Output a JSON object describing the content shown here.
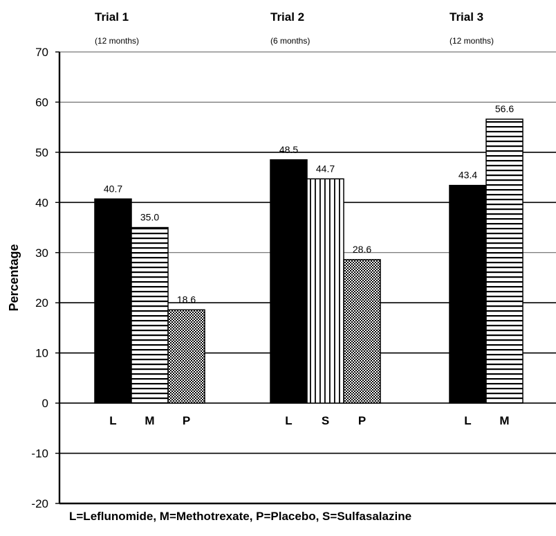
{
  "chart_data": {
    "type": "bar",
    "ylabel": "Percentage",
    "ylim": [
      -20,
      70
    ],
    "yticks": [
      -20,
      -10,
      0,
      10,
      20,
      30,
      40,
      50,
      60,
      70
    ],
    "grid": true,
    "footnote": "L=Leflunomide, M=Methotrexate, P=Placebo, S=Sulfasalazine",
    "groups": [
      {
        "title": "Trial 1",
        "subtitle": "(12 months)",
        "bars": [
          {
            "category": "L",
            "value": 40.7,
            "label": "40.7",
            "pattern": "solid"
          },
          {
            "category": "M",
            "value": 35.0,
            "label": "35.0",
            "pattern": "hstripes"
          },
          {
            "category": "P",
            "value": 18.6,
            "label": "18.6",
            "pattern": "checker"
          }
        ]
      },
      {
        "title": "Trial 2",
        "subtitle": "(6 months)",
        "bars": [
          {
            "category": "L",
            "value": 48.5,
            "label": "48.5",
            "pattern": "solid"
          },
          {
            "category": "S",
            "value": 44.7,
            "label": "44.7",
            "pattern": "vstripes"
          },
          {
            "category": "P",
            "value": 28.6,
            "label": "28.6",
            "pattern": "checker"
          }
        ]
      },
      {
        "title": "Trial 3",
        "subtitle": "(12 months)",
        "bars": [
          {
            "category": "L",
            "value": 43.4,
            "label": "43.4",
            "pattern": "solid"
          },
          {
            "category": "M",
            "value": 56.6,
            "label": "56.6",
            "pattern": "hstripes"
          }
        ]
      }
    ]
  }
}
